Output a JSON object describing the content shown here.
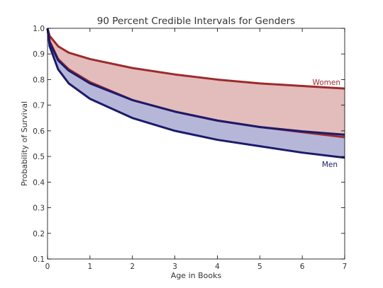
{
  "chart_data": {
    "type": "area",
    "title": "90 Percent Credible Intervals for Genders",
    "xlabel": "Age in Books",
    "ylabel": "Probability of Survival",
    "xlim": [
      0,
      7
    ],
    "ylim": [
      0.1,
      1.0
    ],
    "xticks": [
      0,
      1,
      2,
      3,
      4,
      5,
      6,
      7
    ],
    "yticks": [
      0.1,
      0.2,
      0.3,
      0.4,
      0.5,
      0.6,
      0.7,
      0.8,
      0.9,
      1.0
    ],
    "grid": false,
    "x": [
      0,
      0.05,
      0.25,
      0.5,
      1,
      2,
      3,
      4,
      5,
      6,
      7
    ],
    "series": [
      {
        "name": "Women",
        "color": "#9e2a2b",
        "fill": "#e3bcbc",
        "upper": [
          1.0,
          0.97,
          0.93,
          0.905,
          0.88,
          0.845,
          0.82,
          0.8,
          0.785,
          0.775,
          0.765
        ],
        "lower": [
          1.0,
          0.95,
          0.88,
          0.84,
          0.79,
          0.72,
          0.675,
          0.64,
          0.615,
          0.595,
          0.575
        ]
      },
      {
        "name": "Men",
        "color": "#1b1b6b",
        "fill": "#b6b6d9",
        "upper": [
          1.0,
          0.945,
          0.875,
          0.835,
          0.785,
          0.72,
          0.675,
          0.64,
          0.615,
          0.598,
          0.585
        ],
        "lower": [
          1.0,
          0.93,
          0.84,
          0.785,
          0.725,
          0.65,
          0.6,
          0.565,
          0.54,
          0.515,
          0.495
        ]
      }
    ]
  }
}
